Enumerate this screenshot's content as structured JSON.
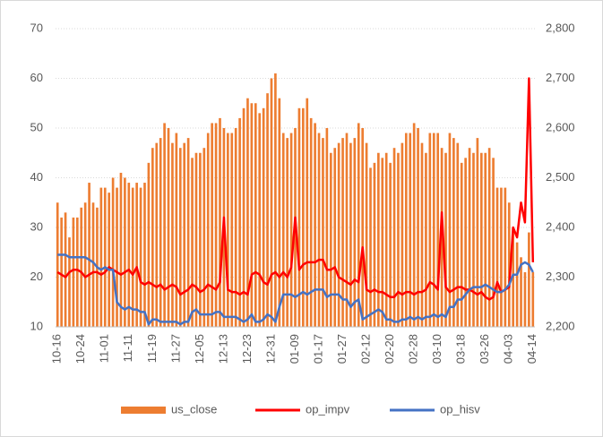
{
  "chart_data": {
    "type": "bar-line",
    "categories": [
      "10-16",
      null,
      null,
      null,
      null,
      null,
      "10-24",
      null,
      null,
      null,
      null,
      null,
      "11-01",
      null,
      null,
      null,
      null,
      null,
      "11-11",
      null,
      null,
      null,
      null,
      null,
      "11-19",
      null,
      null,
      null,
      null,
      null,
      "11-27",
      null,
      null,
      null,
      null,
      null,
      "12-05",
      null,
      null,
      null,
      null,
      null,
      "12-13",
      null,
      null,
      null,
      null,
      null,
      "12-23",
      null,
      null,
      null,
      null,
      null,
      "12-31",
      null,
      null,
      null,
      null,
      null,
      "01-09",
      null,
      null,
      null,
      null,
      null,
      "01-17",
      null,
      null,
      null,
      null,
      null,
      "01-27",
      null,
      null,
      null,
      null,
      null,
      "02-12",
      null,
      null,
      null,
      null,
      null,
      "02-20",
      null,
      null,
      null,
      null,
      null,
      "02-28",
      null,
      null,
      null,
      null,
      null,
      "03-10",
      null,
      null,
      null,
      null,
      null,
      "03-18",
      null,
      null,
      null,
      null,
      null,
      "03-26",
      null,
      null,
      null,
      null,
      null,
      "04-03",
      null,
      null,
      null,
      null,
      null,
      "04-14"
    ],
    "series": [
      {
        "name": "us_close",
        "color": "#ED7D31",
        "kind": "bar",
        "axis": "y2",
        "values": [
          2450,
          2420,
          2430,
          2380,
          2420,
          2420,
          2440,
          2450,
          2490,
          2450,
          2440,
          2480,
          2480,
          2470,
          2500,
          2480,
          2510,
          2500,
          2490,
          2480,
          2490,
          2480,
          2490,
          2530,
          2560,
          2570,
          2580,
          2610,
          2600,
          2570,
          2590,
          2560,
          2570,
          2580,
          2540,
          2550,
          2550,
          2560,
          2590,
          2610,
          2610,
          2620,
          2600,
          2590,
          2590,
          2600,
          2620,
          2640,
          2660,
          2650,
          2650,
          2630,
          2640,
          2670,
          2700,
          2710,
          2660,
          2590,
          2580,
          2590,
          2600,
          2640,
          2640,
          2660,
          2620,
          2610,
          2590,
          2580,
          2600,
          2550,
          2560,
          2570,
          2580,
          2590,
          2570,
          2580,
          2610,
          2600,
          2570,
          2520,
          2530,
          2550,
          2540,
          2550,
          2530,
          2560,
          2550,
          2570,
          2590,
          2590,
          2610,
          2600,
          2570,
          2550,
          2590,
          2590,
          2590,
          2560,
          2550,
          2590,
          2580,
          2570,
          2530,
          2540,
          2560,
          2550,
          2580,
          2550,
          2550,
          2560,
          2540,
          2480,
          2480,
          2480,
          2450,
          2400,
          2370,
          2340,
          2310,
          2390,
          2310
        ]
      },
      {
        "name": "op_impv",
        "color": "#FF0000",
        "kind": "line",
        "values": [
          21,
          20.5,
          20,
          21,
          21.5,
          21.5,
          21,
          20,
          20.5,
          21,
          21,
          20.5,
          21,
          22,
          21.5,
          21,
          20.5,
          21,
          21.5,
          20.5,
          22,
          19,
          18.5,
          19,
          18.5,
          18,
          18.5,
          17.5,
          18,
          18.5,
          18,
          16.5,
          17,
          17.5,
          18.5,
          18,
          17,
          17.5,
          18.5,
          18,
          17.5,
          19,
          32,
          17.5,
          17,
          17,
          16.5,
          17,
          16.5,
          20.5,
          21,
          20.5,
          19,
          18.5,
          20.5,
          21,
          20,
          21,
          20,
          22,
          32,
          21.5,
          22.5,
          23,
          23,
          23,
          23.5,
          23.5,
          21.5,
          21.5,
          22,
          20,
          19.5,
          19,
          18.5,
          19.5,
          19,
          26,
          17.5,
          17,
          17.5,
          17,
          17,
          16.5,
          16,
          16,
          17,
          16.5,
          17,
          17,
          16.5,
          17,
          17,
          17.5,
          19,
          18.5,
          17.5,
          33,
          18,
          17,
          17.5,
          18,
          18,
          17.5,
          17.5,
          17,
          16.5,
          17,
          16,
          15.5,
          16,
          19,
          17,
          17.5,
          18,
          30,
          28,
          35,
          31,
          60,
          23
        ]
      },
      {
        "name": "op_hisv",
        "color": "#4472C4",
        "kind": "line",
        "values": [
          24.5,
          24.5,
          24.5,
          24,
          24,
          24,
          24,
          24,
          23.5,
          23,
          22,
          21.5,
          22,
          21.5,
          21.5,
          15,
          14,
          13.5,
          14,
          13.5,
          13.5,
          13,
          13,
          10.5,
          11.5,
          11.5,
          11,
          11,
          11,
          11,
          11,
          10.5,
          11,
          11,
          13,
          13.5,
          12.5,
          12.5,
          12.5,
          12.5,
          13,
          13,
          12,
          12,
          12,
          12,
          11.5,
          11,
          11.5,
          12.5,
          11,
          11,
          11.5,
          12.5,
          12,
          11,
          14,
          16.5,
          16.5,
          16.5,
          16,
          16.5,
          17,
          16.5,
          17,
          17.5,
          17.5,
          17.5,
          16,
          16.5,
          16.5,
          16.5,
          15.5,
          15.5,
          14,
          15,
          15.5,
          11.5,
          12,
          12.5,
          13,
          13.5,
          13,
          11.5,
          11.5,
          11,
          11,
          11.5,
          11.5,
          12,
          11.5,
          12,
          11.5,
          12,
          12,
          12.5,
          12,
          12.5,
          12,
          14,
          14,
          15.5,
          15.5,
          16.5,
          17.5,
          18,
          18,
          18,
          18.5,
          18,
          17.5,
          17,
          17,
          17.5,
          18.5,
          20.5,
          20.5,
          22.5,
          23,
          22.5,
          21
        ]
      }
    ],
    "ylim": [
      10,
      70
    ],
    "yticks": [
      10,
      20,
      30,
      40,
      50,
      60,
      70
    ],
    "y2lim": [
      2200,
      2800
    ],
    "y2ticks": [
      {
        "value": 2200,
        "label": "2,200"
      },
      {
        "value": 2300,
        "label": "2,300"
      },
      {
        "value": 2400,
        "label": "2,400"
      },
      {
        "value": 2500,
        "label": "2,500"
      },
      {
        "value": 2600,
        "label": "2,600"
      },
      {
        "value": 2700,
        "label": "2,700"
      },
      {
        "value": 2800,
        "label": "2,800"
      }
    ],
    "grid": true,
    "legend": "bottom"
  }
}
